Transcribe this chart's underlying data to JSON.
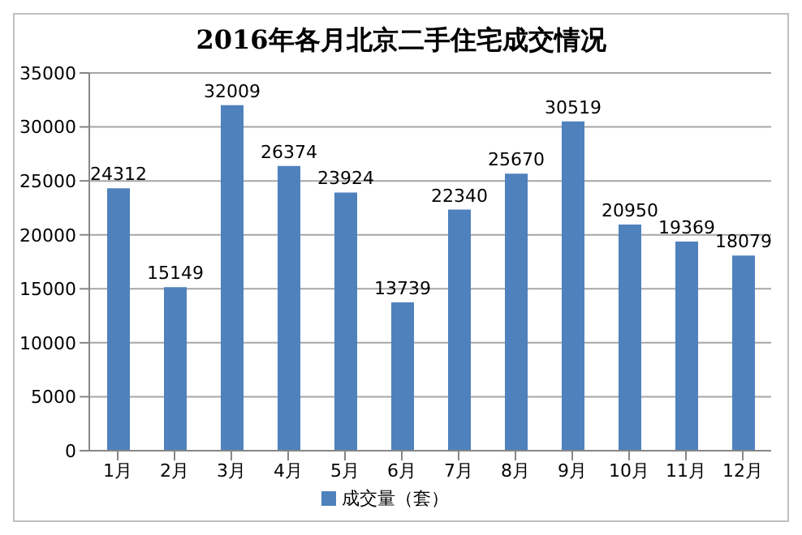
{
  "chart_data": {
    "type": "bar",
    "title": "2016年各月北京二手住宅成交情况",
    "categories": [
      "1月",
      "2月",
      "3月",
      "4月",
      "5月",
      "6月",
      "7月",
      "8月",
      "9月",
      "10月",
      "11月",
      "12月"
    ],
    "series": [
      {
        "name": "成交量（套）",
        "color": "#4f81bd",
        "values": [
          24312,
          15149,
          32009,
          26374,
          23924,
          13739,
          22340,
          25670,
          30519,
          20950,
          19369,
          18079
        ]
      }
    ],
    "ylim": [
      0,
      35000
    ],
    "yticks": [
      0,
      5000,
      10000,
      15000,
      20000,
      25000,
      30000,
      35000
    ],
    "grid": "y",
    "legend": "bottom",
    "data_labels": true
  }
}
